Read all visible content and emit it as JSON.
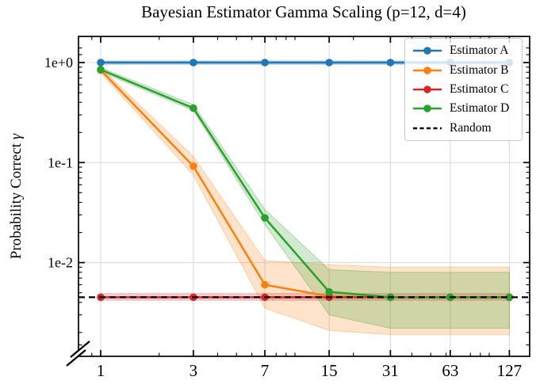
{
  "title": "Bayesian Estimator Gamma Scaling (p=12, d=4)",
  "chart_data": {
    "type": "line",
    "title": "Bayesian Estimator Gamma Scaling (p=12, d=4)",
    "xlabel": "",
    "ylabel_prefix": "Probability Correct ",
    "ylabel_symbol": "γ",
    "x_scale": "log",
    "y_scale": "log",
    "grid": true,
    "legend_position": "upper-right",
    "axis_break": "lower-left",
    "xlim": [
      0.77,
      161
    ],
    "ylim": [
      0.00116,
      1.8
    ],
    "x": [
      1,
      3,
      7,
      15,
      31,
      63,
      127
    ],
    "x_tick_labels": [
      "1",
      "3",
      "7",
      "15",
      "31",
      "63",
      "127"
    ],
    "x_minor_ticks": [
      0.9,
      2,
      4,
      5,
      6,
      8,
      9,
      10,
      20,
      40,
      50,
      60,
      80,
      90,
      100
    ],
    "y_ticks": [
      {
        "value": 1.0,
        "label": "1e+0"
      },
      {
        "value": 0.1,
        "label": "1e-1"
      },
      {
        "value": 0.01,
        "label": "1e-2"
      }
    ],
    "y_minor_ticks": [
      1.4,
      1.2,
      0.9,
      0.8,
      0.7,
      0.6,
      0.5,
      0.4,
      0.3,
      0.2,
      0.09,
      0.08,
      0.07,
      0.06,
      0.05,
      0.04,
      0.03,
      0.02,
      0.009,
      0.008,
      0.007,
      0.006,
      0.005,
      0.004,
      0.003,
      0.002,
      0.0015
    ],
    "grid_color": "#dcdcdc",
    "series": [
      {
        "name": "Estimator A",
        "color": "#1f77b4",
        "dashed": false,
        "marker": true,
        "values": [
          1.0,
          1.0,
          1.0,
          1.0,
          1.0,
          1.0,
          1.0
        ],
        "band_low": [
          0.96,
          0.96,
          0.96,
          0.96,
          0.96,
          0.96,
          0.96
        ],
        "band_high": [
          1.04,
          1.04,
          1.04,
          1.04,
          1.04,
          1.04,
          1.04
        ]
      },
      {
        "name": "Estimator B",
        "color": "#ff7f0e",
        "dashed": false,
        "marker": true,
        "values": [
          0.84,
          0.092,
          0.006,
          0.0046,
          0.0045,
          0.0045,
          0.0045
        ],
        "band_low": [
          0.79,
          0.075,
          0.0035,
          0.0021,
          0.0019,
          0.0019,
          0.0019
        ],
        "band_high": [
          0.89,
          0.115,
          0.0105,
          0.0095,
          0.009,
          0.009,
          0.009
        ]
      },
      {
        "name": "Estimator C",
        "color": "#d62728",
        "dashed": false,
        "marker": true,
        "values": [
          0.0045,
          0.0045,
          0.0045,
          0.0045,
          0.0045,
          0.0045,
          0.0045
        ],
        "band_low": [
          0.0042,
          0.0042,
          0.0042,
          0.0042,
          0.0042,
          0.0042,
          0.0042
        ],
        "band_high": [
          0.0049,
          0.0049,
          0.0049,
          0.0049,
          0.0049,
          0.0049,
          0.0049
        ]
      },
      {
        "name": "Estimator D",
        "color": "#2ca02c",
        "dashed": false,
        "marker": true,
        "values": [
          0.85,
          0.35,
          0.028,
          0.0051,
          0.0045,
          0.0045,
          0.0045
        ],
        "band_low": [
          0.81,
          0.33,
          0.024,
          0.003,
          0.0022,
          0.0022,
          0.0022
        ],
        "band_high": [
          0.89,
          0.38,
          0.034,
          0.0085,
          0.008,
          0.008,
          0.008
        ]
      },
      {
        "name": "Random",
        "color": "#000000",
        "dashed": true,
        "marker": false,
        "constant": 0.0045
      }
    ]
  }
}
